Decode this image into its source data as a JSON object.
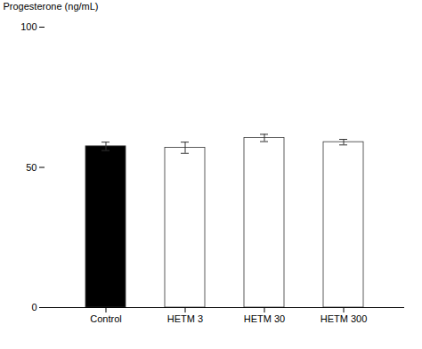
{
  "chart_data": {
    "type": "bar",
    "categories": [
      "Control",
      "HETM 3",
      "HETM 30",
      "HETM 300"
    ],
    "values": [
      57.5,
      57.0,
      60.5,
      59.0
    ],
    "errors": [
      1.5,
      2.0,
      1.3,
      1.0
    ],
    "colors": [
      "#000000",
      "#ffffff",
      "#ffffff",
      "#ffffff"
    ],
    "ylabel": "Progesterone (ng/mL)",
    "ylim": [
      0,
      100
    ],
    "yticks": [
      0,
      50,
      100
    ],
    "grid": false
  }
}
